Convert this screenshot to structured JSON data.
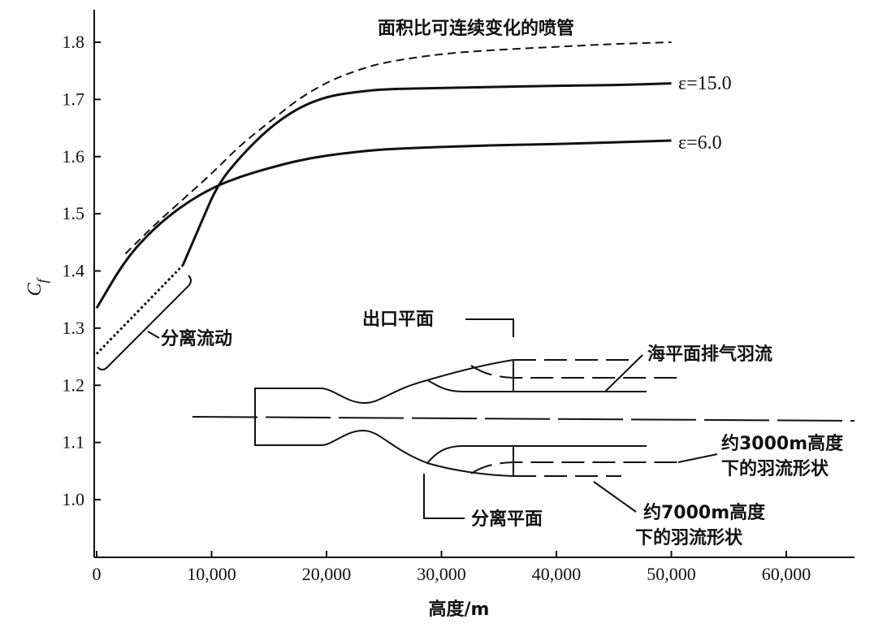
{
  "chart_data": {
    "type": "line",
    "title": "面积比可连续变化的喷管",
    "xlabel": "高度/m",
    "ylabel": "C",
    "ylabel_sub": "f",
    "xlim": [
      0,
      65000
    ],
    "ylim": [
      0.9,
      1.85
    ],
    "x_ticks": [
      0,
      10000,
      20000,
      30000,
      40000,
      50000,
      60000
    ],
    "x_tick_labels": [
      "0",
      "10,000",
      "20,000",
      "30,000",
      "40,000",
      "50,000",
      "60,000"
    ],
    "y_ticks": [
      1.0,
      1.1,
      1.2,
      1.3,
      1.4,
      1.5,
      1.6,
      1.7,
      1.8
    ],
    "y_tick_labels": [
      "1.0",
      "1.1",
      "1.2",
      "1.3",
      "1.4",
      "1.5",
      "1.6",
      "1.7",
      "1.8"
    ],
    "grid": false,
    "series": [
      {
        "name": "ε=6.0",
        "style": "solid",
        "x": [
          0,
          2500,
          5000,
          7500,
          10000,
          12500,
          15000,
          17500,
          20000,
          22500,
          25000,
          30000,
          35000,
          40000,
          45000,
          50000
        ],
        "y": [
          1.335,
          1.42,
          1.475,
          1.515,
          1.545,
          1.565,
          1.58,
          1.593,
          1.602,
          1.608,
          1.613,
          1.617,
          1.62,
          1.622,
          1.625,
          1.628
        ]
      },
      {
        "name": "ε=15.0",
        "style": "solid",
        "x": [
          7500,
          9000,
          10500,
          12500,
          15000,
          17500,
          20000,
          22500,
          25000,
          30000,
          35000,
          40000,
          45000,
          50000
        ],
        "y": [
          1.41,
          1.48,
          1.55,
          1.6,
          1.65,
          1.685,
          1.705,
          1.713,
          1.718,
          1.72,
          1.722,
          1.724,
          1.725,
          1.728
        ]
      },
      {
        "name": "面积比可连续变化的喷管",
        "style": "dashed",
        "x": [
          2500,
          5000,
          7500,
          10000,
          12500,
          15000,
          17500,
          20000,
          22500,
          25000,
          30000,
          35000,
          40000,
          45000,
          50000
        ],
        "y": [
          1.43,
          1.48,
          1.525,
          1.57,
          1.62,
          1.66,
          1.7,
          1.73,
          1.75,
          1.765,
          1.78,
          1.787,
          1.792,
          1.797,
          1.8
        ]
      },
      {
        "name": "分离流动",
        "style": "dotted",
        "x": [
          0,
          7500
        ],
        "y": [
          1.255,
          1.41
        ]
      }
    ],
    "annotations": {
      "eps15": "ε=15.0",
      "eps6": "ε=6.0",
      "separated_flow": "分离流动",
      "exit_plane": "出口平面",
      "sea_level_plume": "海平面排气羽流",
      "plume_3000_line1": "约3000m高度",
      "plume_3000_line2": "下的羽流形状",
      "plume_7000_line1": "约7000m高度",
      "plume_7000_line2": "下的羽流形状",
      "separation_plane": "分离平面"
    }
  }
}
